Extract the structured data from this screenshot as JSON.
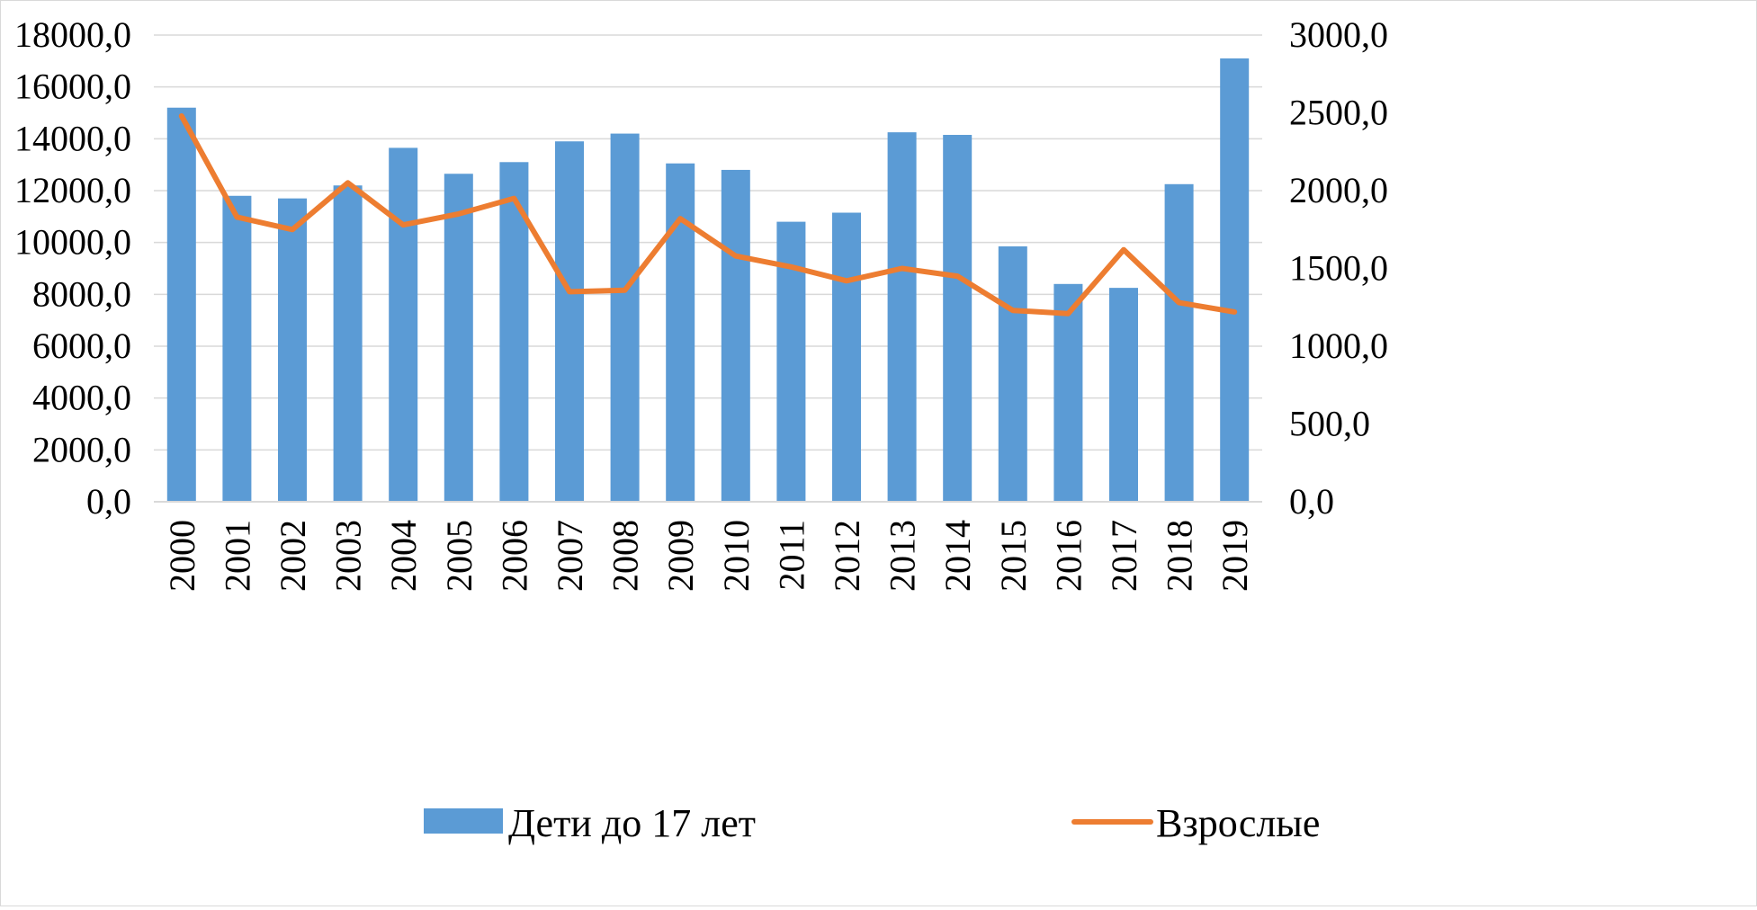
{
  "chart_data": {
    "type": "bar",
    "title": "",
    "xlabel": "",
    "ylabel": "",
    "categories": [
      "2000",
      "2001",
      "2002",
      "2003",
      "2004",
      "2005",
      "2006",
      "2007",
      "2008",
      "2009",
      "2010",
      "2011",
      "2012",
      "2013",
      "2014",
      "2015",
      "2016",
      "2017",
      "2018",
      "2019"
    ],
    "series": [
      {
        "name": "Дети до 17 лет",
        "type": "bar",
        "axis": "left",
        "color": "#5B9BD5",
        "values": [
          15200,
          11800,
          11700,
          12200,
          13650,
          12650,
          13100,
          13900,
          14200,
          13050,
          12800,
          10800,
          11150,
          14250,
          14150,
          9850,
          8400,
          8250,
          12250,
          17100
        ]
      },
      {
        "name": "Взрослые",
        "type": "line",
        "axis": "right",
        "color": "#ED7D31",
        "values": [
          2480,
          1830,
          1750,
          2050,
          1780,
          1850,
          1950,
          1350,
          1360,
          1820,
          1580,
          1510,
          1420,
          1500,
          1450,
          1230,
          1210,
          1620,
          1280,
          1220
        ]
      }
    ],
    "y_left": {
      "ylim": [
        0,
        18000
      ],
      "ticks": [
        "0,0",
        "2000,0",
        "4000,0",
        "6000,0",
        "8000,0",
        "10000,0",
        "12000,0",
        "14000,0",
        "16000,0",
        "18000,0"
      ]
    },
    "y_right": {
      "ylim": [
        0,
        3000
      ],
      "ticks": [
        "0,0",
        "500,0",
        "1000,0",
        "1500,0",
        "2000,0",
        "2500,0",
        "3000,0"
      ]
    },
    "grid": true,
    "legend": {
      "position": "bottom",
      "entries": [
        "Дети до 17 лет",
        "Взрослые"
      ]
    },
    "x_tick_rotation": "vertical"
  }
}
